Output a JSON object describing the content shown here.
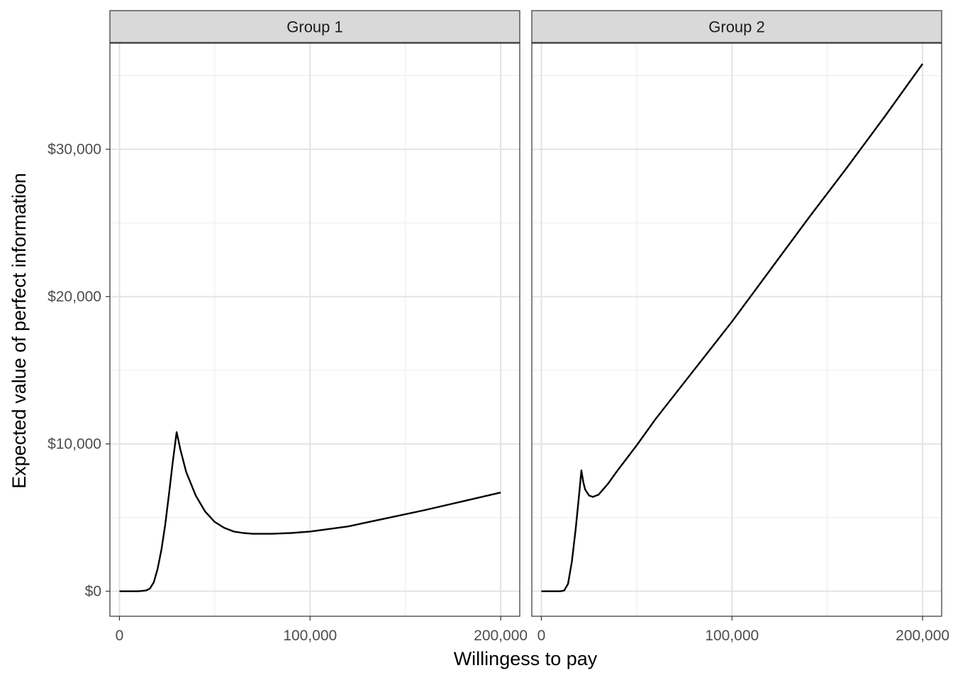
{
  "chart_data": {
    "type": "line",
    "xlabel": "Willingess to pay",
    "ylabel": "Expected value of perfect information",
    "xlim": [
      -5000,
      210000
    ],
    "ylim": [
      -1700,
      37200
    ],
    "x_ticks": [
      0,
      100000,
      200000
    ],
    "x_tick_labels": [
      "0",
      "100,000",
      "200,000"
    ],
    "y_ticks": [
      0,
      10000,
      20000,
      30000
    ],
    "y_tick_labels": [
      "$0",
      "$10,000",
      "$20,000",
      "$30,000"
    ],
    "grid": true,
    "legend": "none",
    "panels": [
      {
        "title": "Group 1",
        "series": [
          {
            "points": [
              [
                0,
                0
              ],
              [
                5000,
                0
              ],
              [
                10000,
                0
              ],
              [
                14000,
                50
              ],
              [
                16000,
                180
              ],
              [
                18000,
                600
              ],
              [
                20000,
                1500
              ],
              [
                22000,
                2800
              ],
              [
                24000,
                4500
              ],
              [
                26000,
                6600
              ],
              [
                28000,
                8800
              ],
              [
                30000,
                10800
              ],
              [
                32000,
                9600
              ],
              [
                35000,
                8100
              ],
              [
                40000,
                6500
              ],
              [
                45000,
                5400
              ],
              [
                50000,
                4700
              ],
              [
                55000,
                4300
              ],
              [
                60000,
                4050
              ],
              [
                65000,
                3950
              ],
              [
                70000,
                3900
              ],
              [
                80000,
                3900
              ],
              [
                90000,
                3950
              ],
              [
                100000,
                4050
              ],
              [
                120000,
                4400
              ],
              [
                140000,
                4950
              ],
              [
                160000,
                5500
              ],
              [
                180000,
                6100
              ],
              [
                200000,
                6700
              ]
            ]
          }
        ]
      },
      {
        "title": "Group 2",
        "series": [
          {
            "points": [
              [
                0,
                0
              ],
              [
                5000,
                0
              ],
              [
                10000,
                0
              ],
              [
                12000,
                50
              ],
              [
                14000,
                500
              ],
              [
                16000,
                2000
              ],
              [
                18000,
                4200
              ],
              [
                20000,
                6800
              ],
              [
                21000,
                8200
              ],
              [
                22000,
                7400
              ],
              [
                23000,
                6900
              ],
              [
                25000,
                6500
              ],
              [
                27000,
                6400
              ],
              [
                30000,
                6550
              ],
              [
                35000,
                7300
              ],
              [
                40000,
                8200
              ],
              [
                50000,
                9900
              ],
              [
                60000,
                11700
              ],
              [
                80000,
                15000
              ],
              [
                100000,
                18300
              ],
              [
                120000,
                21800
              ],
              [
                140000,
                25300
              ],
              [
                160000,
                28700
              ],
              [
                180000,
                32200
              ],
              [
                200000,
                35800
              ]
            ]
          }
        ]
      }
    ]
  }
}
